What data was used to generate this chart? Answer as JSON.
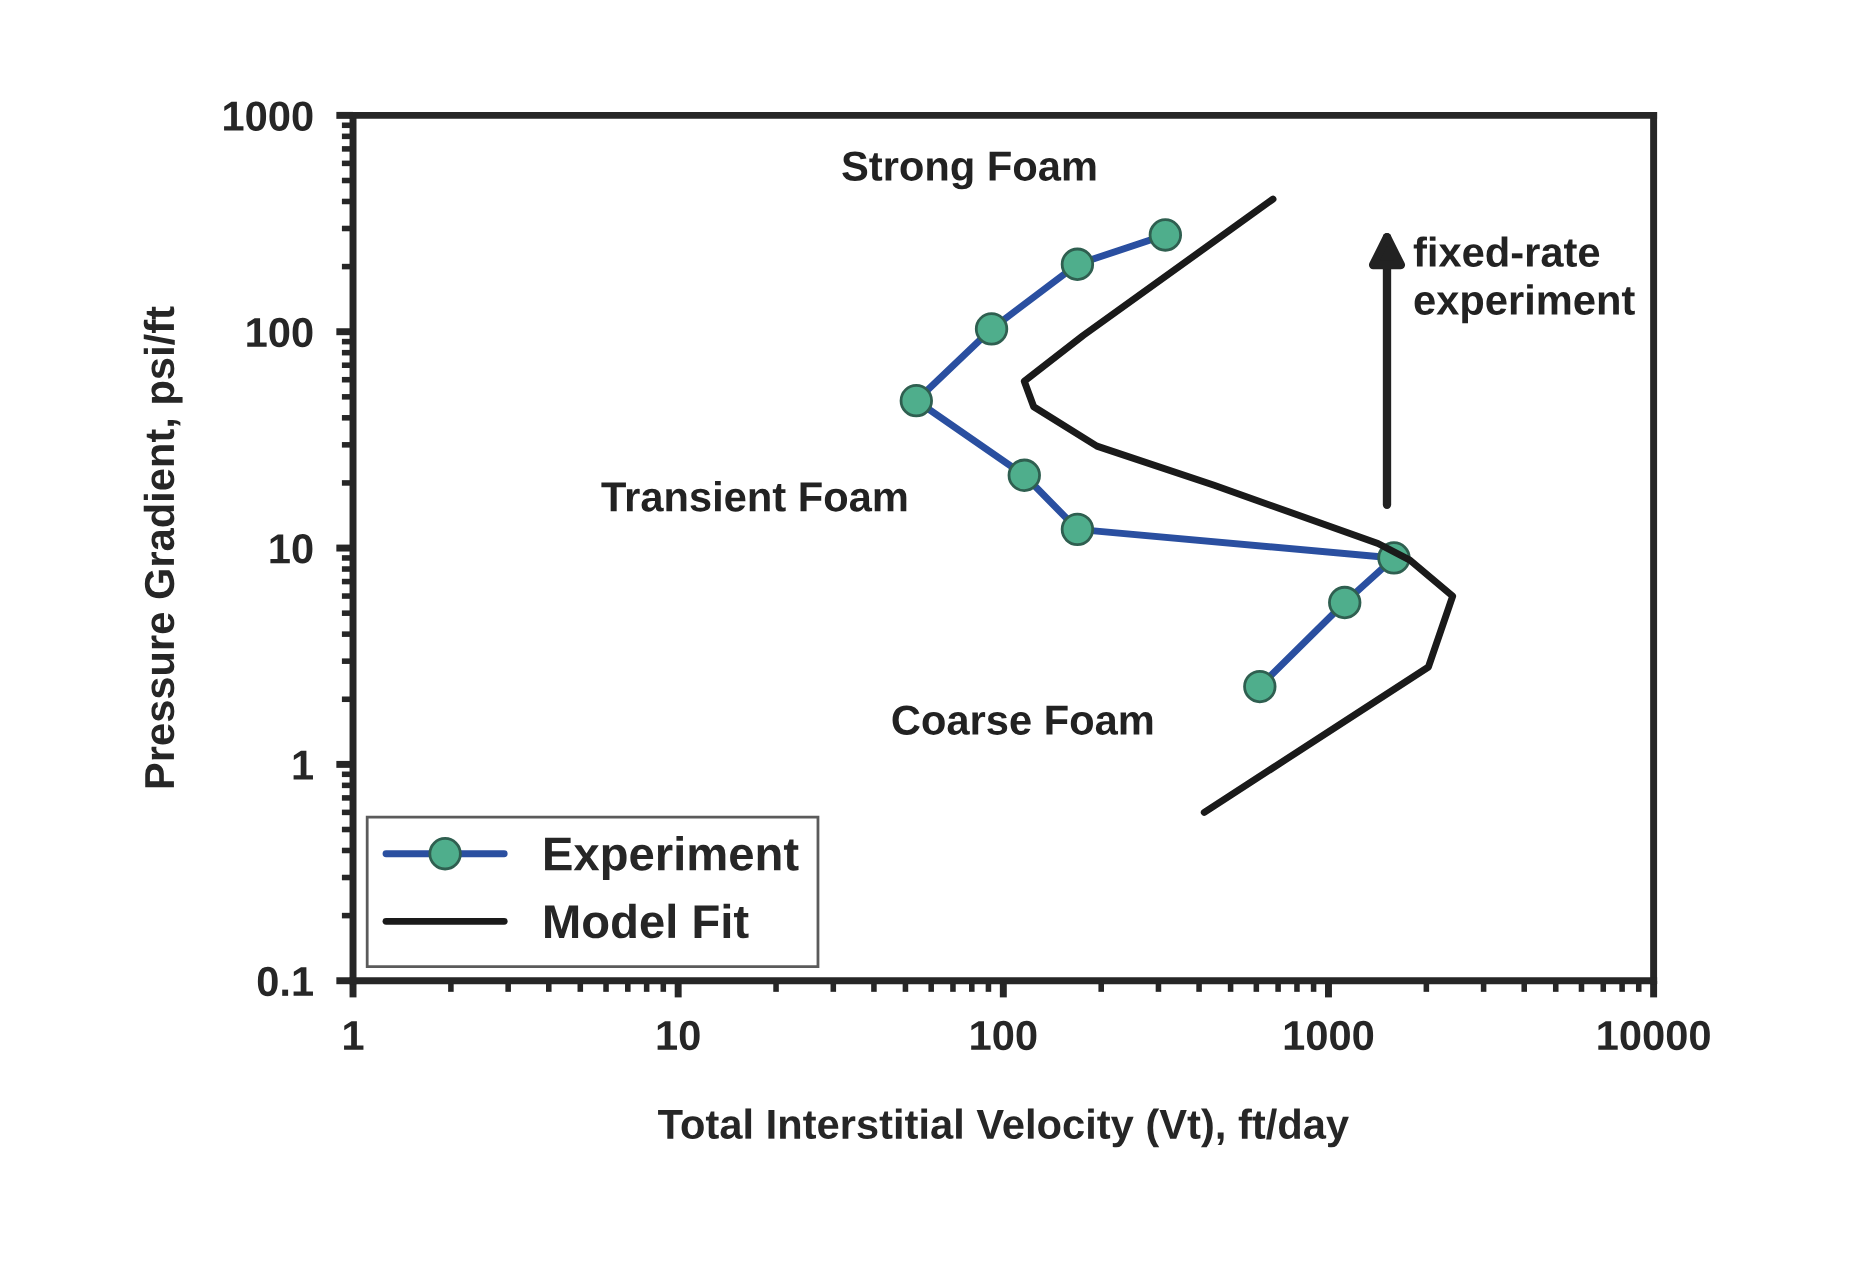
{
  "chart_data": {
    "type": "line",
    "xlabel": "Total Interstitial Velocity (Vt), ft/day",
    "ylabel": "Pressure Gradient, psi/ft",
    "log": "xy",
    "xlim": [
      1,
      10000
    ],
    "xticks": [
      1,
      10,
      100,
      1000,
      10000
    ],
    "ylim": [
      0.1,
      1000
    ],
    "yticks": [
      0.1,
      1,
      10,
      100,
      1000
    ],
    "grid": false,
    "legend": "bottom left",
    "series": [
      {
        "name": "Experiment",
        "color": "#2a4fa0",
        "marker": "circle",
        "x": [
          315,
          169,
          92,
          54,
          116,
          169,
          1590,
          1122,
          615
        ],
        "values": [
          280,
          205,
          103,
          48,
          21.7,
          12.2,
          9.0,
          5.6,
          2.29
        ]
      },
      {
        "name": "Model Fit",
        "color": "#1a1a1a",
        "marker": "none",
        "x": [
          675,
          176,
          116,
          124,
          194,
          445,
          1420,
          1780,
          2410,
          2030,
          415
        ],
        "values": [
          410,
          96,
          59,
          45,
          29.6,
          19.5,
          10.5,
          8.8,
          6.0,
          2.82,
          0.6
        ]
      }
    ],
    "annotations": [
      "Strong Foam",
      "Transient Foam",
      "Coarse Foam",
      "fixed-rate\nexperiment"
    ]
  }
}
